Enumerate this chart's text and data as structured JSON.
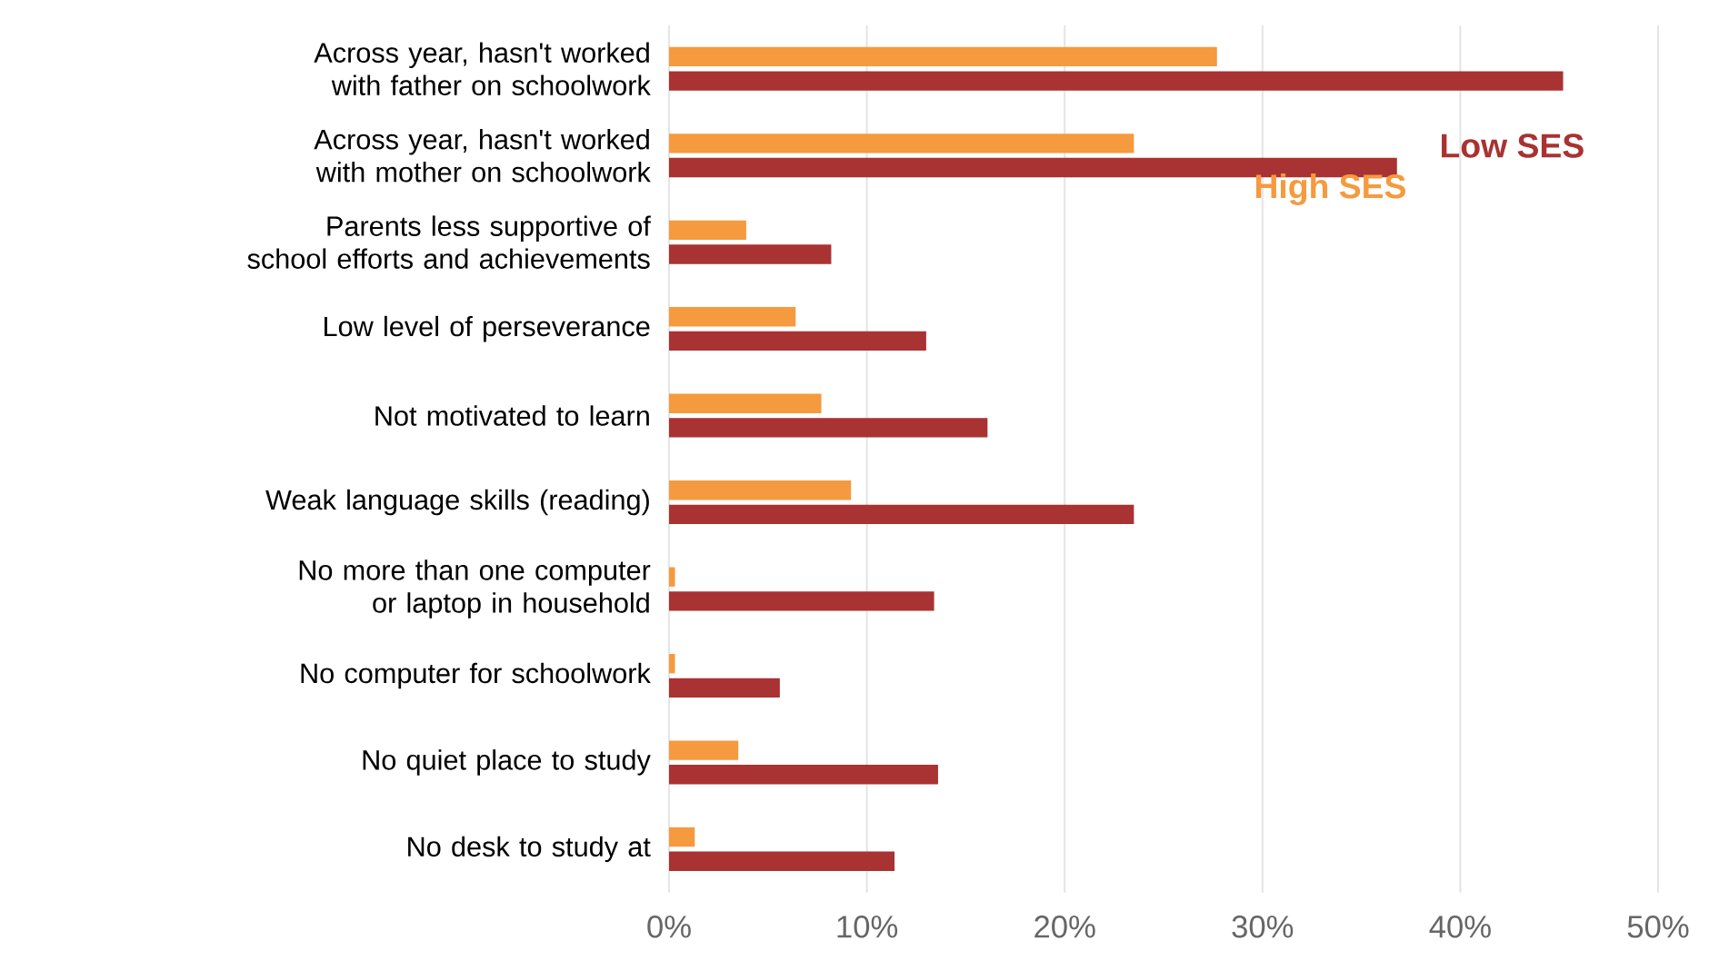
{
  "chart_data": {
    "type": "bar",
    "orientation": "horizontal",
    "categories": [
      "Across year, hasn't worked with father on schoolwork",
      "Across year, hasn't worked with mother on schoolwork",
      "Parents less supportive of school efforts and achievements",
      "Low level of perseverance",
      "Not motivated to learn",
      "Weak language skills (reading)",
      "No more than one computer or laptop in household",
      "No computer for schoolwork",
      "No quiet place to study",
      "No desk to study at"
    ],
    "series": [
      {
        "name": "Low SES",
        "color": "#a93232",
        "values": [
          45.2,
          36.8,
          8.2,
          13.0,
          16.1,
          23.5,
          13.4,
          5.6,
          13.6,
          11.4
        ]
      },
      {
        "name": "High SES",
        "color": "#f59a3e",
        "values": [
          27.7,
          23.5,
          3.9,
          6.4,
          7.7,
          9.2,
          0.3,
          0.3,
          3.5,
          1.3
        ]
      }
    ],
    "xlim": [
      0,
      50
    ],
    "xticks": [
      {
        "value": 0,
        "label": "0%"
      },
      {
        "value": 10,
        "label": "10%"
      },
      {
        "value": 20,
        "label": "20%"
      },
      {
        "value": 30,
        "label": "30%"
      },
      {
        "value": 40,
        "label": "40%"
      },
      {
        "value": 50,
        "label": "50%"
      }
    ],
    "grid": "x",
    "legend": false
  }
}
